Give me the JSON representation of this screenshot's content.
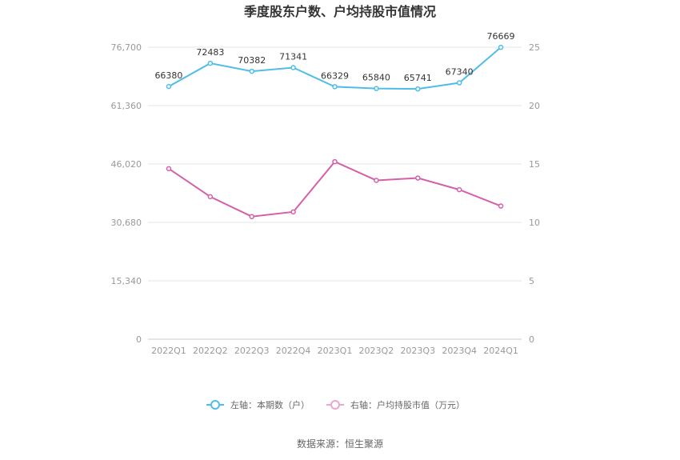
{
  "chart_data": {
    "type": "line",
    "title": "季度股东户数、户均持股市值情况",
    "categories": [
      "2022Q1",
      "2022Q2",
      "2022Q3",
      "2022Q4",
      "2023Q1",
      "2023Q2",
      "2023Q3",
      "2023Q4",
      "2024Q1"
    ],
    "series": [
      {
        "name": "左轴：本期数（户）",
        "axis": "left",
        "color": "#4fbde9",
        "values": [
          66380,
          72483,
          70382,
          71341,
          66329,
          65840,
          65741,
          67340,
          76669
        ]
      },
      {
        "name": "右轴：户均持股市值（万元）",
        "axis": "right",
        "color": "#d460a8",
        "values": [
          14.6,
          12.2,
          10.5,
          10.9,
          15.2,
          13.6,
          13.8,
          12.8,
          11.4
        ]
      }
    ],
    "left_axis": {
      "ticks": [
        "0",
        "15,340",
        "30,680",
        "46,020",
        "61,360",
        "76,700"
      ],
      "ylim": [
        0,
        76700
      ]
    },
    "right_axis": {
      "ticks": [
        "0",
        "5",
        "10",
        "15",
        "20",
        "25"
      ],
      "ylim": [
        0,
        25
      ]
    },
    "grid": true,
    "legend_position": "bottom"
  },
  "source_text": "数据来源：恒生聚源"
}
